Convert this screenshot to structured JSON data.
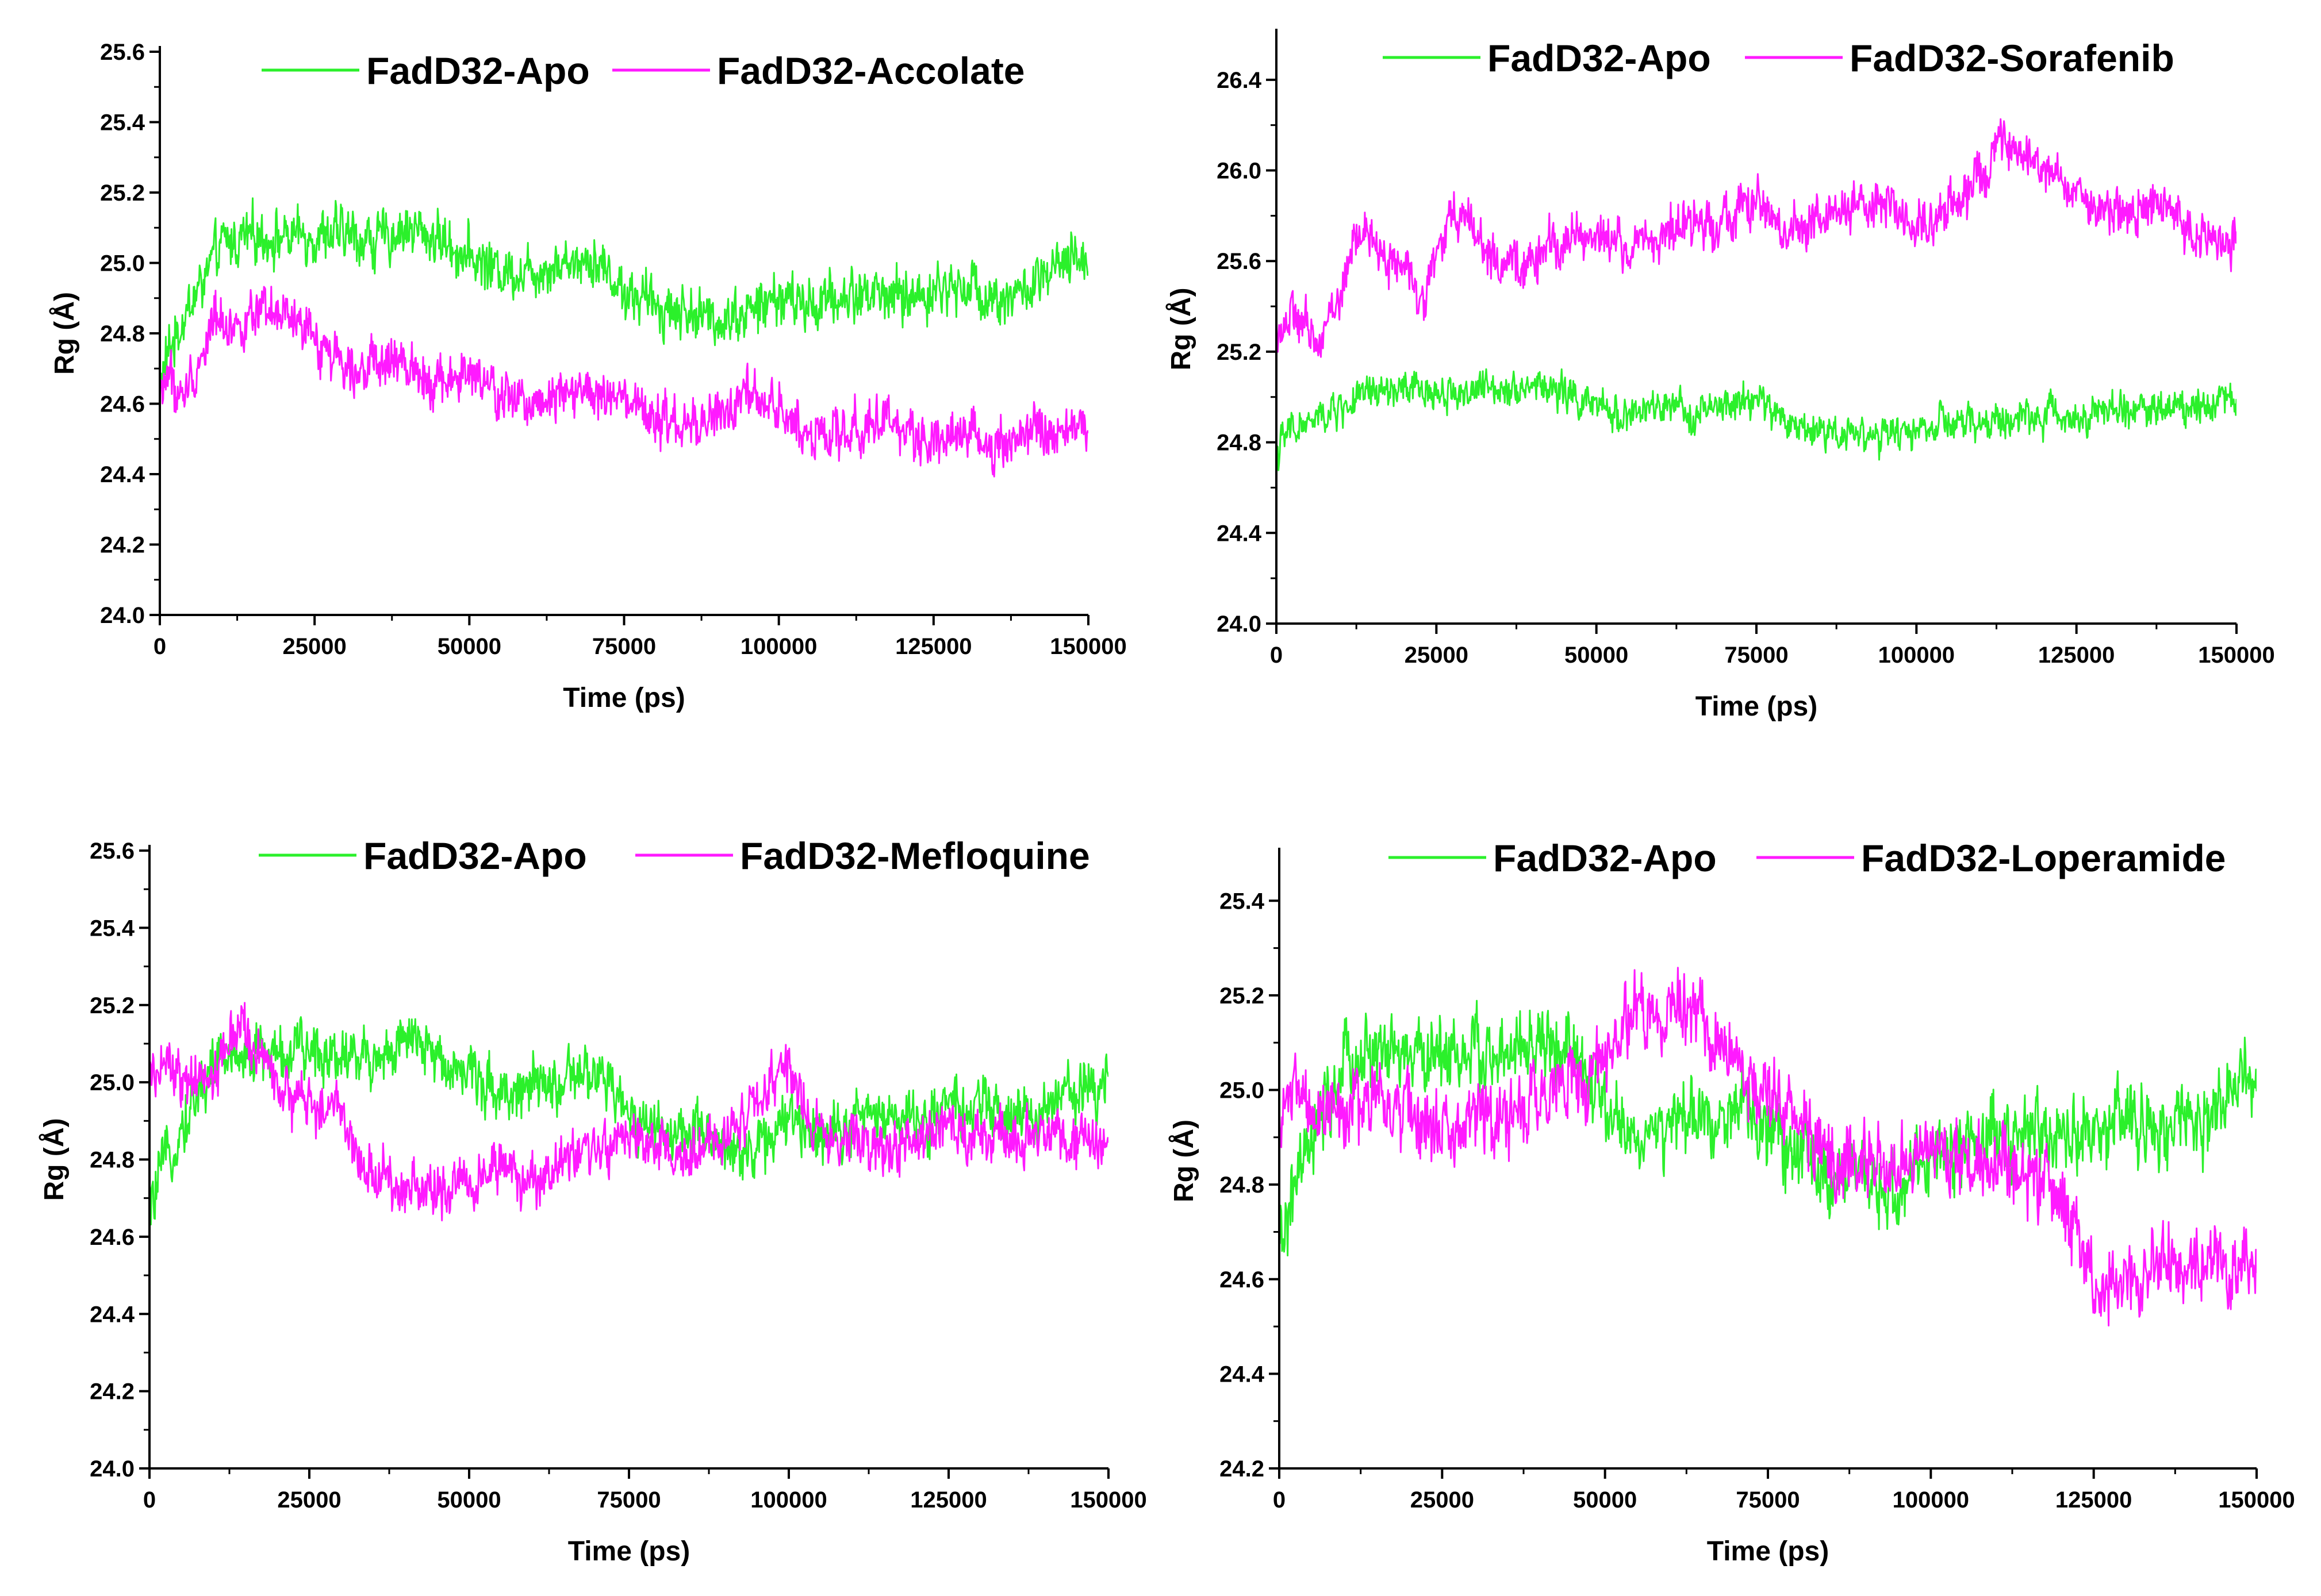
{
  "colors": {
    "apo": "#2bf02b",
    "ligand": "#ff1aff",
    "axis": "#000000",
    "marker": "#4fd0ff"
  },
  "chart_data": [
    {
      "type": "line",
      "title": "",
      "xlabel": "Time (ps)",
      "ylabel": "Rg (Å)",
      "xlim": [
        0,
        150000
      ],
      "ylim": [
        24.0,
        25.6
      ],
      "xticks": [
        0,
        25000,
        50000,
        75000,
        100000,
        125000,
        150000
      ],
      "xtick_labels": [
        "0",
        "25000",
        "50000",
        "75000",
        "100000",
        "125000",
        "150000"
      ],
      "yticks": [
        24.0,
        24.2,
        24.4,
        24.6,
        24.8,
        25.0,
        25.2,
        25.4,
        25.6
      ],
      "ytick_labels": [
        "24.0",
        "24.2",
        "24.4",
        "24.6",
        "24.8",
        "25.0",
        "25.2",
        "25.4",
        "25.6"
      ],
      "legend_position": "top",
      "series": [
        {
          "name": "FadD32-Apo",
          "color": "#2bf02b",
          "noise": 0.085,
          "x": [
            0,
            1500,
            4000,
            7000,
            10000,
            15000,
            20000,
            25000,
            30000,
            35000,
            40000,
            45000,
            50000,
            55000,
            60000,
            65000,
            70000,
            75000,
            80000,
            85000,
            90000,
            95000,
            100000,
            105000,
            110000,
            115000,
            120000,
            125000,
            130000,
            135000,
            140000,
            145000,
            150000
          ],
          "y": [
            24.65,
            24.75,
            24.85,
            24.95,
            25.05,
            25.08,
            25.07,
            25.08,
            25.08,
            25.06,
            25.1,
            25.07,
            25.02,
            24.98,
            24.98,
            25.0,
            25.02,
            24.92,
            24.88,
            24.86,
            24.84,
            24.86,
            24.9,
            24.88,
            24.9,
            24.92,
            24.9,
            24.92,
            24.94,
            24.9,
            24.92,
            24.98,
            25.02
          ]
        },
        {
          "name": "FadD32-Accolate",
          "color": "#ff1aff",
          "noise": 0.08,
          "x": [
            0,
            1500,
            3000,
            6000,
            9000,
            12000,
            15000,
            20000,
            25000,
            30000,
            35000,
            40000,
            45000,
            50000,
            55000,
            60000,
            65000,
            70000,
            75000,
            80000,
            85000,
            90000,
            95000,
            100000,
            105000,
            110000,
            115000,
            120000,
            125000,
            130000,
            135000,
            140000,
            145000,
            150000
          ],
          "y": [
            24.62,
            24.7,
            24.6,
            24.7,
            24.85,
            24.82,
            24.84,
            24.85,
            24.78,
            24.72,
            24.7,
            24.72,
            24.66,
            24.68,
            24.62,
            24.6,
            24.65,
            24.62,
            24.6,
            24.55,
            24.53,
            24.56,
            24.62,
            24.58,
            24.52,
            24.5,
            24.56,
            24.52,
            24.5,
            24.52,
            24.48,
            24.52,
            24.5,
            24.55
          ]
        }
      ]
    },
    {
      "type": "line",
      "title": "",
      "xlabel": "Time (ps)",
      "ylabel": "Rg (Å)",
      "xlim": [
        0,
        150000
      ],
      "ylim": [
        24.0,
        26.6
      ],
      "xticks": [
        0,
        25000,
        50000,
        75000,
        100000,
        125000,
        150000
      ],
      "xtick_labels": [
        "0",
        "25000",
        "50000",
        "75000",
        "100000",
        "125000",
        "150000"
      ],
      "yticks": [
        24.0,
        24.4,
        24.8,
        25.2,
        25.6,
        26.0,
        26.4
      ],
      "ytick_labels": [
        "24.0",
        "24.4",
        "24.8",
        "25.2",
        "25.6",
        "26.0",
        "26.4"
      ],
      "legend_position": "top",
      "series": [
        {
          "name": "FadD32-Apo",
          "color": "#2bf02b",
          "noise": 0.09,
          "x": [
            0,
            2000,
            5000,
            10000,
            15000,
            20000,
            25000,
            30000,
            35000,
            40000,
            45000,
            50000,
            55000,
            60000,
            65000,
            70000,
            75000,
            80000,
            85000,
            90000,
            95000,
            100000,
            105000,
            110000,
            115000,
            120000,
            125000,
            130000,
            135000,
            140000,
            145000,
            150000
          ],
          "y": [
            24.75,
            24.85,
            24.88,
            24.95,
            25.02,
            25.03,
            25.02,
            25.02,
            25.05,
            25.05,
            25.02,
            24.95,
            24.92,
            24.95,
            24.93,
            24.95,
            25.0,
            24.88,
            24.85,
            24.85,
            24.82,
            24.86,
            24.88,
            24.88,
            24.9,
            24.92,
            24.92,
            24.94,
            24.95,
            24.95,
            24.98,
            25.0
          ]
        },
        {
          "name": "FadD32-Sorafenib",
          "color": "#ff1aff",
          "noise": 0.12,
          "x": [
            0,
            3000,
            6000,
            10000,
            13000,
            16000,
            20000,
            23000,
            26000,
            29000,
            32000,
            35000,
            40000,
            45000,
            50000,
            55000,
            60000,
            65000,
            70000,
            75000,
            80000,
            85000,
            90000,
            95000,
            100000,
            105000,
            110000,
            113000,
            116000,
            120000,
            125000,
            130000,
            135000,
            140000,
            145000,
            150000
          ],
          "y": [
            25.3,
            25.35,
            25.25,
            25.45,
            25.75,
            25.65,
            25.55,
            25.45,
            25.7,
            25.85,
            25.7,
            25.55,
            25.6,
            25.7,
            25.72,
            25.65,
            25.72,
            25.75,
            25.8,
            25.85,
            25.72,
            25.8,
            25.82,
            25.85,
            25.75,
            25.85,
            25.95,
            26.1,
            26.05,
            26.0,
            25.9,
            25.8,
            25.85,
            25.8,
            25.7,
            25.7
          ]
        }
      ]
    },
    {
      "type": "line",
      "title": "",
      "xlabel": "Time (ps)",
      "ylabel": "Rg (Å)",
      "xlim": [
        0,
        150000
      ],
      "ylim": [
        24.0,
        25.6
      ],
      "xticks": [
        0,
        25000,
        50000,
        75000,
        100000,
        125000,
        150000
      ],
      "xtick_labels": [
        "0",
        "25000",
        "50000",
        "75000",
        "100000",
        "125000",
        "150000"
      ],
      "yticks": [
        24.0,
        24.2,
        24.4,
        24.6,
        24.8,
        25.0,
        25.2,
        25.4,
        25.6
      ],
      "ytick_labels": [
        "24.0",
        "24.2",
        "24.4",
        "24.6",
        "24.8",
        "25.0",
        "25.2",
        "25.4",
        "25.6"
      ],
      "legend_position": "top",
      "series": [
        {
          "name": "FadD32-Apo",
          "color": "#2bf02b",
          "noise": 0.085,
          "x": [
            0,
            1500,
            4000,
            7000,
            10000,
            15000,
            20000,
            25000,
            30000,
            35000,
            40000,
            45000,
            50000,
            55000,
            60000,
            65000,
            70000,
            75000,
            80000,
            85000,
            90000,
            95000,
            100000,
            105000,
            110000,
            115000,
            120000,
            125000,
            130000,
            135000,
            140000,
            145000,
            150000
          ],
          "y": [
            24.65,
            24.75,
            24.85,
            24.95,
            25.05,
            25.08,
            25.07,
            25.08,
            25.08,
            25.06,
            25.1,
            25.07,
            25.02,
            24.98,
            24.98,
            25.0,
            25.02,
            24.92,
            24.88,
            24.86,
            24.84,
            24.82,
            24.9,
            24.88,
            24.9,
            24.92,
            24.9,
            24.92,
            24.94,
            24.9,
            24.92,
            24.98,
            25.02
          ]
        },
        {
          "name": "FadD32-Mefloquine",
          "color": "#ff1aff",
          "noise": 0.08,
          "x": [
            0,
            3000,
            6000,
            10000,
            14000,
            18000,
            22000,
            26000,
            30000,
            33000,
            36000,
            40000,
            45000,
            50000,
            55000,
            60000,
            65000,
            70000,
            75000,
            80000,
            85000,
            90000,
            93000,
            96000,
            100000,
            103000,
            106000,
            110000,
            115000,
            120000,
            125000,
            130000,
            135000,
            140000,
            145000,
            150000
          ],
          "y": [
            25.0,
            25.05,
            24.98,
            25.02,
            25.15,
            25.05,
            24.95,
            24.95,
            24.92,
            24.8,
            24.75,
            24.73,
            24.72,
            24.75,
            24.78,
            24.72,
            24.8,
            24.83,
            24.85,
            24.82,
            24.8,
            24.85,
            24.92,
            24.95,
            25.05,
            24.92,
            24.85,
            24.85,
            24.82,
            24.85,
            24.88,
            24.85,
            24.85,
            24.88,
            24.85,
            24.82
          ]
        }
      ]
    },
    {
      "type": "line",
      "title": "",
      "xlabel": "Time (ps)",
      "ylabel": "Rg (Å)",
      "xlim": [
        0,
        150000
      ],
      "ylim": [
        24.2,
        25.5
      ],
      "xticks": [
        0,
        25000,
        50000,
        75000,
        100000,
        125000,
        150000
      ],
      "xtick_labels": [
        "0",
        "25000",
        "50000",
        "75000",
        "100000",
        "125000",
        "150000"
      ],
      "yticks": [
        24.2,
        24.4,
        24.6,
        24.8,
        25.0,
        25.2,
        25.4
      ],
      "ytick_labels": [
        "24.2",
        "24.4",
        "24.6",
        "24.8",
        "25.0",
        "25.2",
        "25.4"
      ],
      "legend_position": "top",
      "series": [
        {
          "name": "FadD32-Apo",
          "color": "#2bf02b",
          "noise": 0.09,
          "x": [
            0,
            1500,
            4000,
            7000,
            10000,
            15000,
            20000,
            25000,
            30000,
            35000,
            40000,
            45000,
            50000,
            55000,
            60000,
            65000,
            70000,
            75000,
            80000,
            85000,
            90000,
            95000,
            100000,
            105000,
            110000,
            115000,
            120000,
            125000,
            130000,
            135000,
            140000,
            145000,
            150000
          ],
          "y": [
            24.65,
            24.75,
            24.85,
            24.95,
            25.05,
            25.08,
            25.07,
            25.08,
            25.08,
            25.06,
            25.1,
            25.07,
            24.95,
            24.9,
            24.92,
            24.94,
            24.96,
            24.92,
            24.86,
            24.82,
            24.8,
            24.78,
            24.86,
            24.88,
            24.9,
            24.92,
            24.9,
            24.92,
            24.94,
            24.9,
            24.92,
            24.98,
            25.02
          ]
        },
        {
          "name": "FadD32-Loperamide",
          "color": "#ff1aff",
          "noise": 0.09,
          "x": [
            0,
            3000,
            6000,
            10000,
            15000,
            20000,
            25000,
            30000,
            35000,
            40000,
            45000,
            50000,
            55000,
            60000,
            65000,
            68000,
            72000,
            75000,
            80000,
            85000,
            90000,
            95000,
            100000,
            105000,
            110000,
            113000,
            118000,
            122000,
            125000,
            130000,
            135000,
            140000,
            145000,
            150000
          ],
          "y": [
            24.95,
            25.0,
            24.95,
            24.95,
            24.98,
            24.95,
            24.9,
            24.95,
            24.95,
            24.98,
            25.02,
            25.08,
            25.15,
            25.18,
            25.15,
            25.12,
            25.0,
            24.98,
            24.95,
            24.85,
            24.85,
            24.85,
            24.88,
            24.85,
            24.85,
            24.82,
            24.8,
            24.72,
            24.6,
            24.6,
            24.62,
            24.65,
            24.62,
            24.65
          ]
        }
      ]
    }
  ]
}
